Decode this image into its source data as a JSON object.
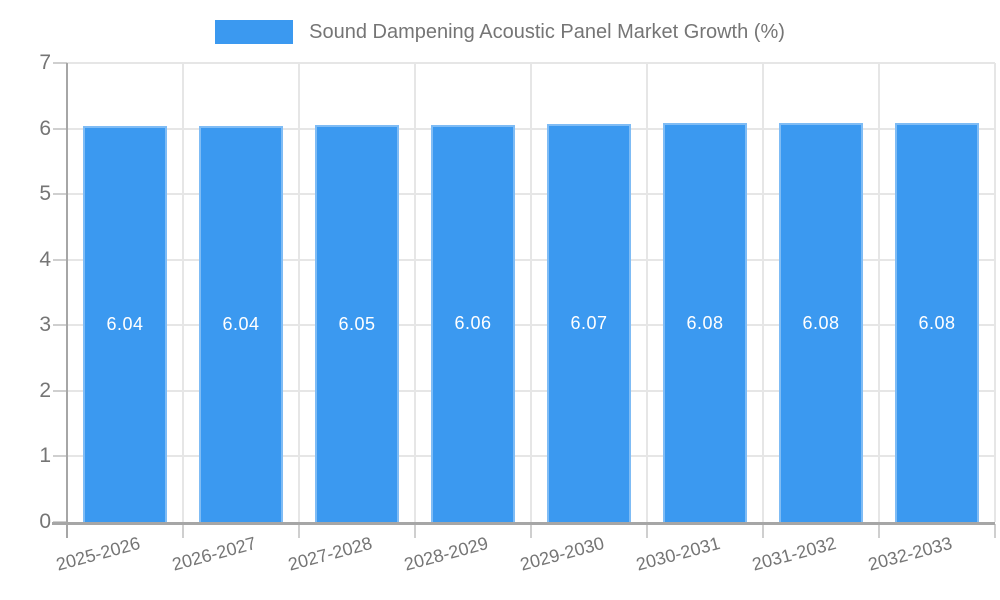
{
  "chart_data": {
    "type": "bar",
    "title": "Sound Dampening Acoustic Panel Market Growth (%)",
    "categories": [
      "2025-2026",
      "2026-2027",
      "2027-2028",
      "2028-2029",
      "2029-2030",
      "2030-2031",
      "2031-2032",
      "2032-2033"
    ],
    "values": [
      6.04,
      6.04,
      6.05,
      6.06,
      6.07,
      6.08,
      6.08,
      6.08
    ],
    "bar_labels": [
      "6.04",
      "6.04",
      "6.05",
      "6.06",
      "6.07",
      "6.08",
      "6.08",
      "6.08"
    ],
    "series": [
      {
        "name": "Sound Dampening Acoustic Panel Market Growth (%)",
        "values": [
          6.04,
          6.04,
          6.05,
          6.06,
          6.07,
          6.08,
          6.08,
          6.08
        ]
      }
    ],
    "xlabel": "",
    "ylabel": "",
    "ylim": [
      0,
      7
    ],
    "yticks": [
      "0",
      "1",
      "2",
      "3",
      "4",
      "5",
      "6",
      "7"
    ],
    "grid": true,
    "legend_position": "top-center",
    "colors": {
      "bar": "#3B99F0",
      "bar_border": "rgba(255,255,255,0.35)",
      "bar_value_text": "#FFFFFF",
      "axis_text": "#757575",
      "axis_line": "#A6A6A6",
      "grid_line": "#E6E6E6",
      "tick_line": "#CFCFCF",
      "background": "#FFFFFF"
    }
  }
}
